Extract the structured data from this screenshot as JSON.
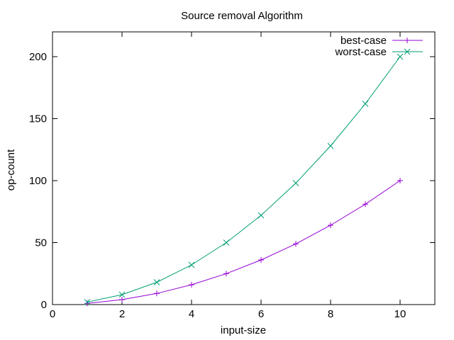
{
  "chart_data": {
    "type": "line",
    "title": "Source removal Algorithm",
    "xlabel": "input-size",
    "ylabel": "op-count",
    "xlim": [
      0,
      11
    ],
    "ylim": [
      0,
      220
    ],
    "xticks": [
      0,
      2,
      4,
      6,
      8,
      10
    ],
    "yticks": [
      0,
      50,
      100,
      150,
      200
    ],
    "grid": false,
    "legend_position": "top-right",
    "series": [
      {
        "name": "best-case",
        "color": "#9400d3",
        "marker": "plus",
        "x": [
          1,
          2,
          3,
          4,
          5,
          6,
          7,
          8,
          9,
          10
        ],
        "y": [
          1,
          4,
          9,
          16,
          25,
          36,
          49,
          64,
          81,
          100
        ]
      },
      {
        "name": "worst-case",
        "color": "#009e73",
        "marker": "cross",
        "x": [
          1,
          2,
          3,
          4,
          5,
          6,
          7,
          8,
          9,
          10
        ],
        "y": [
          2,
          8,
          18,
          32,
          50,
          72,
          98,
          128,
          162,
          200
        ]
      }
    ]
  }
}
